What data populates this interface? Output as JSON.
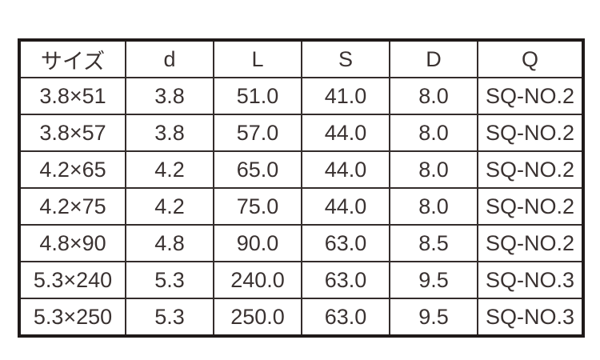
{
  "colors": {
    "background": "#ffffff",
    "outer_border": "#1f1a19",
    "inner_border": "#332c2b",
    "text": "#3a3231"
  },
  "table": {
    "headers": [
      "サイズ",
      "d",
      "L",
      "S",
      "D",
      "Q"
    ],
    "rows": [
      [
        "3.8×51",
        "3.8",
        "51.0",
        "41.0",
        "8.0",
        "SQ-NO.2"
      ],
      [
        "3.8×57",
        "3.8",
        "57.0",
        "44.0",
        "8.0",
        "SQ-NO.2"
      ],
      [
        "4.2×65",
        "4.2",
        "65.0",
        "44.0",
        "8.0",
        "SQ-NO.2"
      ],
      [
        "4.2×75",
        "4.2",
        "75.0",
        "44.0",
        "8.0",
        "SQ-NO.2"
      ],
      [
        "4.8×90",
        "4.8",
        "90.0",
        "63.0",
        "8.5",
        "SQ-NO.2"
      ],
      [
        "5.3×240",
        "5.3",
        "240.0",
        "63.0",
        "9.5",
        "SQ-NO.3"
      ],
      [
        "5.3×250",
        "5.3",
        "250.0",
        "63.0",
        "9.5",
        "SQ-NO.3"
      ]
    ]
  },
  "chart_data": {
    "type": "table",
    "columns": [
      "サイズ",
      "d",
      "L",
      "S",
      "D",
      "Q"
    ],
    "rows": [
      [
        "3.8×51",
        "3.8",
        "51.0",
        "41.0",
        "8.0",
        "SQ-NO.2"
      ],
      [
        "3.8×57",
        "3.8",
        "57.0",
        "44.0",
        "8.0",
        "SQ-NO.2"
      ],
      [
        "4.2×65",
        "4.2",
        "65.0",
        "44.0",
        "8.0",
        "SQ-NO.2"
      ],
      [
        "4.2×75",
        "4.2",
        "75.0",
        "44.0",
        "8.0",
        "SQ-NO.2"
      ],
      [
        "4.8×90",
        "4.8",
        "90.0",
        "63.0",
        "8.5",
        "SQ-NO.2"
      ],
      [
        "5.3×240",
        "5.3",
        "240.0",
        "63.0",
        "9.5",
        "SQ-NO.3"
      ],
      [
        "5.3×250",
        "5.3",
        "250.0",
        "63.0",
        "9.5",
        "SQ-NO.3"
      ]
    ]
  }
}
